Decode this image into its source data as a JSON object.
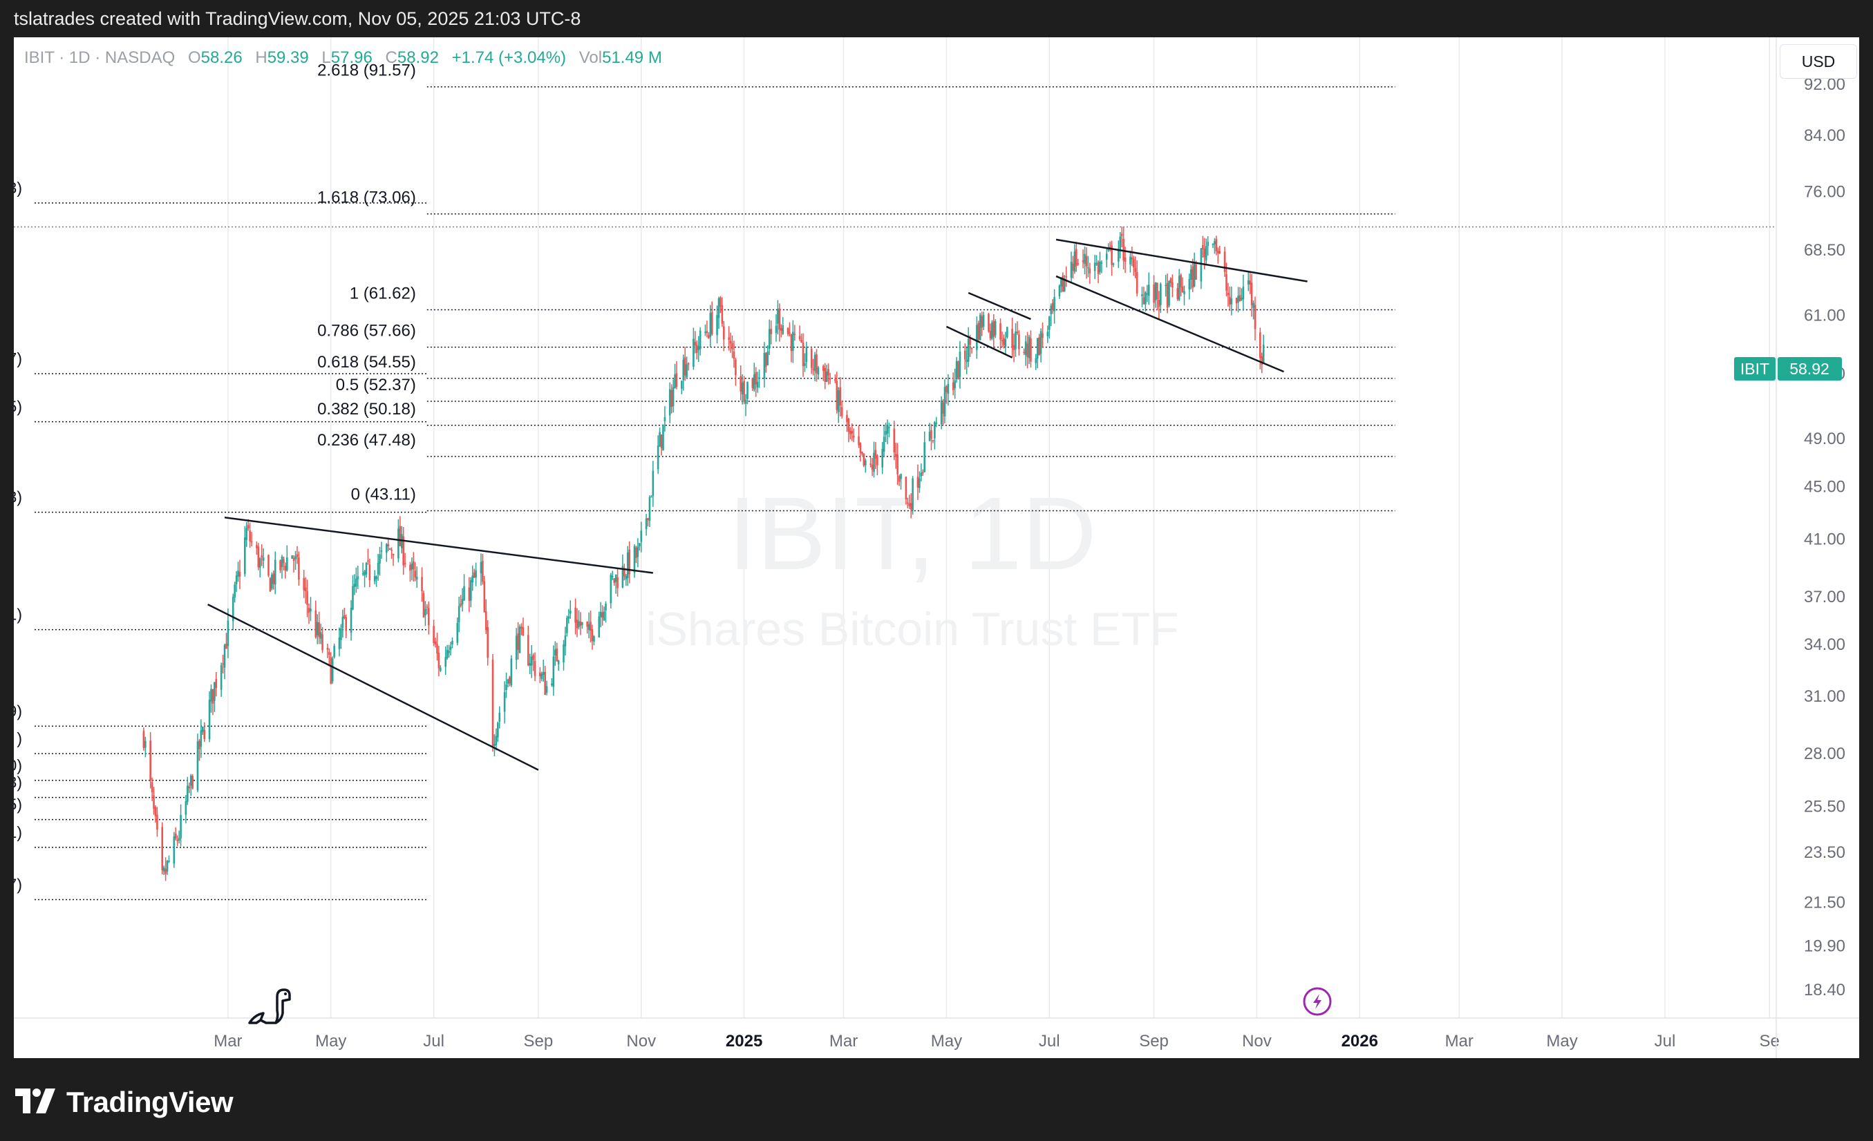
{
  "header": {
    "credit": "tslatrades created with TradingView.com, Nov 05, 2025 21:03 UTC-8"
  },
  "legend": {
    "symbol": "IBIT · 1D · NASDAQ",
    "open_label": "O",
    "open": "58.26",
    "high_label": "H",
    "high": "59.39",
    "low_label": "L",
    "low": "57.96",
    "close_label": "C",
    "close": "58.92",
    "change": "+1.74 (+3.04%)",
    "vol_label": "Vol",
    "volume": "51.49 M"
  },
  "currency_button": "USD",
  "watermark": {
    "symbol": "IBIT, 1D",
    "name": "iShares Bitcoin Trust ETF"
  },
  "price_badge": {
    "symbol": "IBIT",
    "price": "58.92"
  },
  "colors": {
    "up": "#26a69a",
    "down": "#ef5350",
    "badge": "#22ab94",
    "grid": "#e8eaed",
    "fib": "#131722"
  },
  "icons": {
    "dino": "dinosaur-icon",
    "event": "lightning-event-icon",
    "logo": "tradingview-logo-icon"
  },
  "footer": {
    "brand": "TradingView"
  },
  "chart_data": {
    "type": "candlestick",
    "symbol": "IBIT",
    "interval": "1D",
    "exchange": "NASDAQ",
    "last_price": 58.92,
    "y_scale": "log",
    "ylim": [
      17.5,
      100
    ],
    "price_ticks": [
      "92.00",
      "84.00",
      "76.00",
      "68.50",
      "61.00",
      "55.00",
      "49.00",
      "45.00",
      "41.00",
      "37.00",
      "34.00",
      "31.00",
      "28.00",
      "25.50",
      "23.50",
      "21.50",
      "19.90",
      "18.40"
    ],
    "time_ticks": [
      {
        "label": "Mar",
        "date": "2024-03-01",
        "bold": false
      },
      {
        "label": "May",
        "date": "2024-05-01",
        "bold": false
      },
      {
        "label": "Jul",
        "date": "2024-07-01",
        "bold": false
      },
      {
        "label": "Sep",
        "date": "2024-09-01",
        "bold": false
      },
      {
        "label": "Nov",
        "date": "2024-11-01",
        "bold": false
      },
      {
        "label": "2025",
        "date": "2025-01-01",
        "bold": true
      },
      {
        "label": "Mar",
        "date": "2025-03-01",
        "bold": false
      },
      {
        "label": "May",
        "date": "2025-05-01",
        "bold": false
      },
      {
        "label": "Jul",
        "date": "2025-07-01",
        "bold": false
      },
      {
        "label": "Sep",
        "date": "2025-09-01",
        "bold": false
      },
      {
        "label": "Nov",
        "date": "2025-11-01",
        "bold": false
      },
      {
        "label": "2026",
        "date": "2026-01-01",
        "bold": true
      },
      {
        "label": "Mar",
        "date": "2026-03-01",
        "bold": false
      },
      {
        "label": "May",
        "date": "2026-05-01",
        "bold": false
      },
      {
        "label": "Jul",
        "date": "2026-07-01",
        "bold": false
      },
      {
        "label": "Se",
        "date": "2026-09-01",
        "bold": false
      }
    ],
    "xlim": [
      "2023-10-26",
      "2026-09-05"
    ],
    "price_path": [
      [
        "2024-01-11",
        29.0
      ],
      [
        "2024-01-22",
        22.3
      ],
      [
        "2024-02-01",
        24.3
      ],
      [
        "2024-02-15",
        29.0
      ],
      [
        "2024-03-01",
        34.8
      ],
      [
        "2024-03-12",
        41.5
      ],
      [
        "2024-03-25",
        38.0
      ],
      [
        "2024-04-08",
        40.0
      ],
      [
        "2024-04-20",
        35.5
      ],
      [
        "2024-05-01",
        32.5
      ],
      [
        "2024-05-15",
        37.5
      ],
      [
        "2024-05-30",
        39.5
      ],
      [
        "2024-06-10",
        41.0
      ],
      [
        "2024-06-25",
        36.5
      ],
      [
        "2024-07-05",
        32.5
      ],
      [
        "2024-07-15",
        36.0
      ],
      [
        "2024-07-29",
        39.0
      ],
      [
        "2024-08-05",
        28.8
      ],
      [
        "2024-08-20",
        34.5
      ],
      [
        "2024-09-06",
        31.5
      ],
      [
        "2024-09-20",
        36.0
      ],
      [
        "2024-10-01",
        34.5
      ],
      [
        "2024-10-15",
        38.0
      ],
      [
        "2024-10-31",
        40.0
      ],
      [
        "2024-11-11",
        48.0
      ],
      [
        "2024-11-22",
        55.0
      ],
      [
        "2024-12-05",
        58.0
      ],
      [
        "2024-12-17",
        61.5
      ],
      [
        "2024-12-31",
        53.5
      ],
      [
        "2025-01-10",
        55.0
      ],
      [
        "2025-01-21",
        61.0
      ],
      [
        "2025-02-05",
        56.5
      ],
      [
        "2025-02-20",
        55.0
      ],
      [
        "2025-03-05",
        49.0
      ],
      [
        "2025-03-15",
        46.0
      ],
      [
        "2025-03-28",
        49.5
      ],
      [
        "2025-04-08",
        43.5
      ],
      [
        "2025-04-21",
        49.0
      ],
      [
        "2025-05-05",
        54.5
      ],
      [
        "2025-05-22",
        60.5
      ],
      [
        "2025-06-05",
        59.0
      ],
      [
        "2025-06-22",
        57.0
      ],
      [
        "2025-07-03",
        61.0
      ],
      [
        "2025-07-14",
        67.5
      ],
      [
        "2025-07-30",
        66.5
      ],
      [
        "2025-08-13",
        69.0
      ],
      [
        "2025-08-25",
        63.5
      ],
      [
        "2025-09-05",
        63.0
      ],
      [
        "2025-09-22",
        64.5
      ],
      [
        "2025-10-06",
        71.0
      ],
      [
        "2025-10-17",
        61.5
      ],
      [
        "2025-10-27",
        65.0
      ],
      [
        "2025-11-04",
        56.5
      ],
      [
        "2025-11-05",
        58.92
      ]
    ],
    "fib_levels": [
      {
        "ratio": "2.618",
        "label": "2.618 (91.57)",
        "price": 91.57
      },
      {
        "ratio": "1.618",
        "label": "1.618 (73.06)",
        "price": 73.06
      },
      {
        "ratio": "1",
        "label": "1 (61.62)",
        "price": 61.62
      },
      {
        "ratio": "0.786",
        "label": "0.786 (57.66)",
        "price": 57.66
      },
      {
        "ratio": "0.618",
        "label": "0.618 (54.55)",
        "price": 54.55
      },
      {
        "ratio": "0.5",
        "label": "0.5 (52.37)",
        "price": 52.37
      },
      {
        "ratio": "0.382",
        "label": "0.382 (50.18)",
        "price": 50.18
      },
      {
        "ratio": "0.236",
        "label": "0.236 (47.48)",
        "price": 47.48
      },
      {
        "ratio": "0",
        "label": "0 (43.11)",
        "price": 43.11
      }
    ],
    "fib_range": {
      "from": "2024-06-27",
      "to": "2026-01-22"
    },
    "left_fib_levels": [
      {
        "label": "3)",
        "price": 74.5
      },
      {
        "label": "7)",
        "price": 55.0
      },
      {
        "label": "5)",
        "price": 50.5
      },
      {
        "label": "3)",
        "price": 43.0
      },
      {
        "label": "1)",
        "price": 34.9
      },
      {
        "label": "9)",
        "price": 29.4
      },
      {
        "label": ")",
        "price": 28.0
      },
      {
        "label": "0)",
        "price": 26.7
      },
      {
        "label": "3)",
        "price": 25.9
      },
      {
        "label": "5)",
        "price": 24.9
      },
      {
        "label": "1)",
        "price": 23.7
      },
      {
        "label": "7)",
        "price": 21.6
      }
    ],
    "left_fib_range": {
      "from": "2023-10-26",
      "to": "2024-06-27"
    },
    "hline_price": 71.4,
    "trendlines": [
      {
        "name": "triangle-upper",
        "from": [
          "2024-02-28",
          42.6
        ],
        "to": [
          "2024-11-08",
          38.6
        ]
      },
      {
        "name": "triangle-lower",
        "from": [
          "2024-02-18",
          36.5
        ],
        "to": [
          "2024-09-01",
          27.2
        ]
      },
      {
        "name": "flag-upper",
        "from": [
          "2025-05-14",
          63.5
        ],
        "to": [
          "2025-06-20",
          60.6
        ]
      },
      {
        "name": "flag-lower",
        "from": [
          "2025-05-01",
          59.8
        ],
        "to": [
          "2025-06-09",
          56.6
        ]
      },
      {
        "name": "wedge-upper",
        "from": [
          "2025-07-05",
          69.8
        ],
        "to": [
          "2025-12-01",
          64.8
        ]
      },
      {
        "name": "wedge-lower",
        "from": [
          "2025-07-05",
          65.4
        ],
        "to": [
          "2025-11-17",
          55.2
        ]
      }
    ]
  }
}
